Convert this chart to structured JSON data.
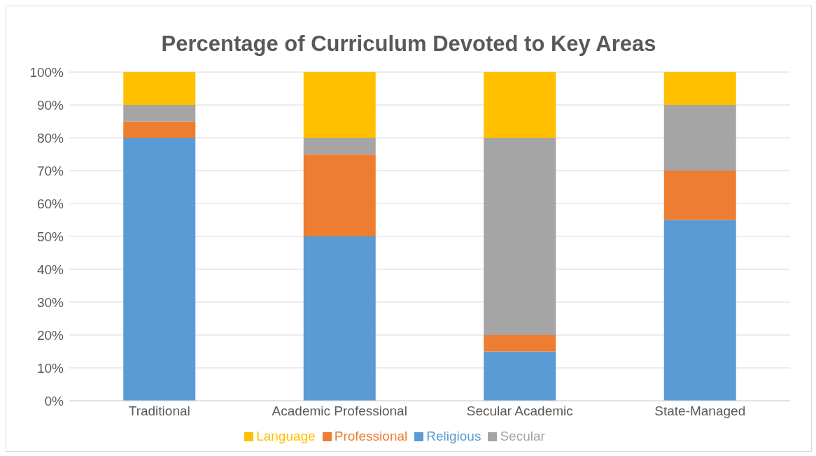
{
  "chart_data": {
    "type": "bar",
    "title": "Percentage of Curriculum Devoted to Key Areas",
    "categories": [
      "Traditional",
      "Academic Professional",
      "Secular Academic",
      "State-Managed"
    ],
    "stacked": true,
    "series": [
      {
        "name": "Religious",
        "color": "#5b9bd5",
        "values": [
          80,
          50,
          15,
          55
        ]
      },
      {
        "name": "Professional",
        "color": "#ed7d31",
        "values": [
          5,
          25,
          5,
          15
        ]
      },
      {
        "name": "Secular",
        "color": "#a5a5a5",
        "values": [
          5,
          5,
          60,
          20
        ]
      },
      {
        "name": "Language",
        "color": "#ffc000",
        "values": [
          10,
          20,
          20,
          10
        ]
      }
    ],
    "ylim": [
      0,
      100
    ],
    "yticks": [
      {
        "value": 0,
        "label": "0%"
      },
      {
        "value": 10,
        "label": "10%"
      },
      {
        "value": 20,
        "label": "20%"
      },
      {
        "value": 30,
        "label": "30%"
      },
      {
        "value": 40,
        "label": "40%"
      },
      {
        "value": 50,
        "label": "50%"
      },
      {
        "value": 60,
        "label": "60%"
      },
      {
        "value": 70,
        "label": "70%"
      },
      {
        "value": 80,
        "label": "80%"
      },
      {
        "value": 90,
        "label": "90%"
      },
      {
        "value": 100,
        "label": "100%"
      }
    ],
    "grid": "y",
    "legend": "bottom"
  }
}
